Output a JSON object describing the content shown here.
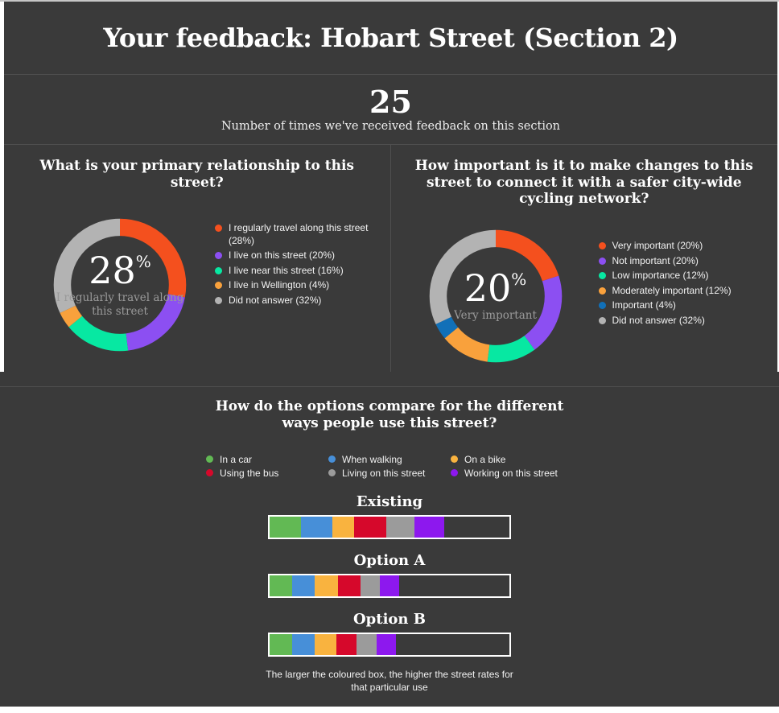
{
  "page": {
    "title": "Your feedback: Hobart Street (Section 2)",
    "stats_value": "25",
    "stats_caption": "Number of times we've received feedback on this section"
  },
  "colors": {
    "background": "#3a3a3a",
    "divider": "#4f4f4f",
    "page_edge": "#ffffff",
    "text_primary": "#ffffff",
    "text_muted": "#9a9a9a"
  },
  "chart_data": [
    {
      "type": "pie",
      "variant": "donut",
      "title": "What is your primary relationship to this street?",
      "center_value": "28",
      "center_unit": "%",
      "center_label": "I regularly travel along this street",
      "legend_position": "right",
      "slices": [
        {
          "label": "I regularly travel along this street",
          "value": 28,
          "color": "#f4501e"
        },
        {
          "label": "I live on this street",
          "value": 20,
          "color": "#8c4ff2"
        },
        {
          "label": "I live near this street",
          "value": 16,
          "color": "#07e8a2"
        },
        {
          "label": "I live in Wellington",
          "value": 4,
          "color": "#f9a13c"
        },
        {
          "label": "Did not answer",
          "value": 32,
          "color": "#b3b3b3"
        }
      ]
    },
    {
      "type": "pie",
      "variant": "donut",
      "title": "How important is it to make changes to this street to connect it with a safer city-wide cycling network?",
      "center_value": "20",
      "center_unit": "%",
      "center_label": "Very important",
      "legend_position": "right",
      "slices": [
        {
          "label": "Very important",
          "value": 20,
          "color": "#f4501e"
        },
        {
          "label": "Not important",
          "value": 20,
          "color": "#8c4ff2"
        },
        {
          "label": "Low importance",
          "value": 12,
          "color": "#07e8a2"
        },
        {
          "label": "Moderately important",
          "value": 12,
          "color": "#f9a13c"
        },
        {
          "label": "Important",
          "value": 4,
          "color": "#1170b8"
        },
        {
          "label": "Did not answer",
          "value": 32,
          "color": "#b3b3b3"
        }
      ]
    },
    {
      "type": "bar",
      "variant": "horizontal-stacked",
      "title": "How do the options compare for the different ways people use this street?",
      "note": "The larger the coloured box, the higher the street rates for that particular use",
      "legend": [
        {
          "label": "In a car",
          "color": "#62b954"
        },
        {
          "label": "When walking",
          "color": "#478fd8"
        },
        {
          "label": "On a bike",
          "color": "#f9b33f"
        },
        {
          "label": "Using the bus",
          "color": "#d6082b"
        },
        {
          "label": "Living on this street",
          "color": "#9b9b9b"
        },
        {
          "label": "Working on this street",
          "color": "#8d18ee"
        }
      ],
      "segment_colors": [
        "#62b954",
        "#478fd8",
        "#f9b33f",
        "#d6082b",
        "#9b9b9b",
        "#8d18ee"
      ],
      "segment_order": [
        "In a car",
        "When walking",
        "On a bike",
        "Using the bus",
        "Living on this street",
        "Working on this street"
      ],
      "bars": [
        {
          "label": "Existing",
          "segments_pct": [
            13.2,
            12.9,
            9.3,
            13.2,
            11.9,
            12.3
          ]
        },
        {
          "label": "Option A",
          "segments_pct": [
            9.3,
            9.6,
            9.6,
            9.6,
            7.9,
            7.9
          ]
        },
        {
          "label": "Option B",
          "segments_pct": [
            9.3,
            9.6,
            8.9,
            8.6,
            8.3,
            7.9
          ]
        }
      ]
    }
  ]
}
